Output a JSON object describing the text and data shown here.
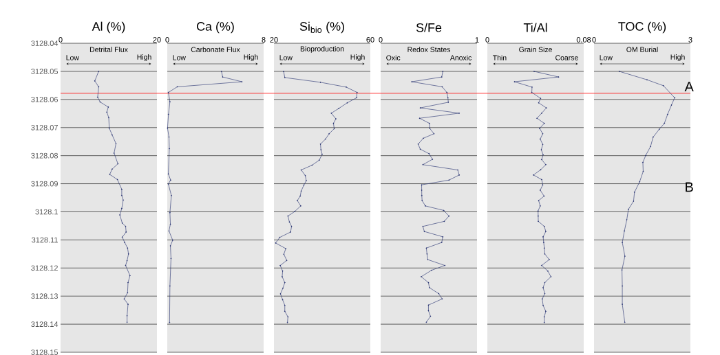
{
  "chart_data": [
    {
      "type": "line",
      "title": "Al (%)",
      "xlim": [
        0,
        20
      ],
      "xticks": [
        0,
        20
      ],
      "ylim": [
        3128.15,
        3128.04
      ],
      "yticks": [
        3128.04,
        3128.05,
        3128.06,
        3128.07,
        3128.08,
        3128.09,
        3128.1,
        3128.11,
        3128.12,
        3128.13,
        3128.14,
        3128.15
      ],
      "grid": "y",
      "marker": "circle",
      "annotations": [
        "Detrital Flux",
        "Low",
        "High"
      ],
      "ref_lines": [
        {
          "axis": "y",
          "value": 3128.0578,
          "color": "#ff0000"
        }
      ],
      "series": [
        {
          "color": "#1f2a6b",
          "x": [
            7.9,
            7.1,
            7.9,
            7.7,
            8.2,
            9.9,
            9.6,
            10.0,
            10.1,
            10.7,
            11.5,
            11.1,
            11.9,
            10.7,
            10.2,
            11.8,
            12.7,
            12.7,
            13.0,
            12.7,
            12.3,
            12.8,
            13.5,
            13.6,
            12.8,
            13.3,
            13.9,
            14.1,
            13.8,
            13.5,
            14.4,
            14.0,
            13.9,
            13.2,
            14.0,
            13.8,
            13.8
          ],
          "values": [
            3128.05,
            3128.0534,
            3128.0555,
            3128.0592,
            3128.0609,
            3128.0627,
            3128.0645,
            3128.0665,
            3128.0702,
            3128.0726,
            3128.0757,
            3128.0791,
            3128.0829,
            3128.0848,
            3128.0867,
            3128.0885,
            3128.092,
            3128.0942,
            3128.0958,
            3128.0988,
            3128.1011,
            3128.104,
            3128.1052,
            3128.1072,
            3128.109,
            3128.1109,
            3128.1129,
            3128.115,
            3128.1174,
            3128.1191,
            3128.1227,
            3128.1252,
            3128.1288,
            3128.131,
            3128.1329,
            3128.137,
            3128.1393
          ]
        }
      ]
    },
    {
      "type": "line",
      "title": "Ca (%)",
      "xlim": [
        0,
        8
      ],
      "xticks": [
        0,
        8
      ],
      "ylim": [
        3128.15,
        3128.04
      ],
      "yticks": [
        3128.04,
        3128.05,
        3128.06,
        3128.07,
        3128.08,
        3128.09,
        3128.1,
        3128.11,
        3128.12,
        3128.13,
        3128.14,
        3128.15
      ],
      "tick_labels": "x",
      "grid": "y",
      "marker": "circle",
      "annotations": [
        "Carbonate Flux",
        "Low",
        "High"
      ],
      "ref_lines": [
        {
          "axis": "y",
          "value": 3128.0578,
          "color": "#ff0000"
        }
      ],
      "series": [
        {
          "color": "#1f2a6b",
          "x": [
            4.5,
            4.6,
            6.2,
            0.83,
            0.09,
            0.22,
            0.1,
            0.02,
            0.14,
            0.17,
            0.09,
            0.28,
            0.09,
            0.34,
            0.22,
            0.26,
            0.14,
            0.45,
            0.26,
            0.31,
            0.22,
            0.19
          ],
          "values": [
            3128.05,
            3128.052,
            3128.0537,
            3128.0555,
            3128.0575,
            3128.0608,
            3128.0653,
            3128.0702,
            3128.0734,
            3128.0775,
            3128.0865,
            3128.0887,
            3128.0901,
            3128.0942,
            3128.1003,
            3128.1044,
            3128.1068,
            3128.1101,
            3128.1121,
            3128.1166,
            3128.1264,
            3128.1394
          ]
        }
      ]
    },
    {
      "type": "line",
      "title": "Si$_{bio}$ (%)",
      "xlim": [
        20,
        60
      ],
      "xticks": [
        20,
        60
      ],
      "ylim": [
        3128.15,
        3128.04
      ],
      "yticks": [
        3128.04,
        3128.05,
        3128.06,
        3128.07,
        3128.08,
        3128.09,
        3128.1,
        3128.11,
        3128.12,
        3128.13,
        3128.14,
        3128.15
      ],
      "tick_labels": "x",
      "grid": "y",
      "marker": "circle",
      "annotations": [
        "Bioproduction",
        "Low",
        "High"
      ],
      "ref_lines": [
        {
          "axis": "y",
          "value": 3128.0578,
          "color": "#ff0000"
        }
      ],
      "series": [
        {
          "color": "#1f2a6b",
          "x": [
            24.0,
            24.5,
            39.3,
            50.0,
            54.5,
            54.3,
            50.4,
            46.9,
            43.8,
            45.7,
            44.7,
            45.0,
            42.9,
            41.4,
            39.3,
            39.5,
            40.0,
            38.8,
            35.8,
            31.3,
            33.0,
            33.4,
            32.4,
            31.3,
            30.9,
            29.7,
            31.1,
            28.6,
            25.8,
            26.4,
            27.3,
            26.9,
            22.4,
            20.7,
            24.9,
            24.1,
            25.3,
            22.6,
            23.6,
            23.4,
            24.5,
            23.7,
            22.7,
            23.6,
            24.5,
            24.5,
            25.8,
            25.6
          ],
          "values": [
            3128.05,
            3128.0522,
            3128.0539,
            3128.0556,
            3128.0575,
            3128.0594,
            3128.0612,
            3128.0632,
            3128.0649,
            3128.0669,
            3128.0685,
            3128.0704,
            3128.0722,
            3128.0741,
            3128.0759,
            3128.0779,
            3128.0795,
            3128.0816,
            3128.0834,
            3128.0851,
            3128.0871,
            3128.0889,
            3128.0905,
            3128.0926,
            3128.0944,
            3128.096,
            3128.0979,
            3128.0999,
            3128.1015,
            3128.1036,
            3128.1052,
            3128.1072,
            3128.1091,
            3128.1111,
            3128.1131,
            3128.1151,
            3128.1173,
            3128.1191,
            3128.1211,
            3128.1231,
            3128.1252,
            3128.1272,
            3128.1292,
            3128.1313,
            3128.1333,
            3128.1354,
            3128.1374,
            3128.1394
          ]
        }
      ]
    },
    {
      "type": "line",
      "title": "S/Fe",
      "xlim": [
        0,
        1
      ],
      "xticks": [
        0,
        1
      ],
      "ylim": [
        3128.15,
        3128.04
      ],
      "yticks": [
        3128.04,
        3128.05,
        3128.06,
        3128.07,
        3128.08,
        3128.09,
        3128.1,
        3128.11,
        3128.12,
        3128.13,
        3128.14,
        3128.15
      ],
      "tick_labels": "x",
      "grid": "y",
      "marker": "circle",
      "annotations": [
        "Redox States",
        "Oxic",
        "Anoxic"
      ],
      "ref_lines": [
        {
          "axis": "y",
          "value": 3128.0578,
          "color": "#ff0000"
        }
      ],
      "series": [
        {
          "color": "#1f2a6b",
          "x": [
            0.645,
            0.634,
            0.323,
            0.638,
            0.687,
            0.698,
            0.702,
            0.411,
            0.815,
            0.404,
            0.506,
            0.51,
            0.553,
            0.443,
            0.389,
            0.411,
            0.502,
            0.538,
            0.438,
            0.8,
            0.815,
            0.709,
            0.425,
            0.426,
            0.427,
            0.43,
            0.464,
            0.655,
            0.709,
            0.66,
            0.438,
            0.453,
            0.645,
            0.634,
            0.474,
            0.481,
            0.489,
            0.666,
            0.528,
            0.421,
            0.496,
            0.506,
            0.602,
            0.638,
            0.496,
            0.496,
            0.517,
            0.474
          ],
          "values": [
            3128.05,
            3128.052,
            3128.0537,
            3128.0555,
            3128.0575,
            3128.0594,
            3128.061,
            3128.063,
            3128.0649,
            3128.0667,
            3128.0685,
            3128.0703,
            3128.0722,
            3128.0738,
            3128.0759,
            3128.0777,
            3128.0793,
            3128.0813,
            3128.0832,
            3128.0851,
            3128.0869,
            3128.0887,
            3128.0904,
            3128.0923,
            3128.0942,
            3128.096,
            3128.0979,
            3128.0995,
            3128.1015,
            3128.1034,
            3128.1052,
            3128.107,
            3128.1089,
            3128.1109,
            3128.1129,
            3128.115,
            3128.117,
            3128.1191,
            3128.1208,
            3128.1231,
            3128.1252,
            3128.127,
            3128.1291,
            3128.131,
            3128.1332,
            3128.1352,
            3128.1372,
            3128.1393
          ]
        }
      ]
    },
    {
      "type": "line",
      "title": "Ti/Al",
      "xlim": [
        0,
        0.08
      ],
      "xticks": [
        0,
        0.08
      ],
      "ylim": [
        3128.15,
        3128.04
      ],
      "yticks": [
        3128.04,
        3128.05,
        3128.06,
        3128.07,
        3128.08,
        3128.09,
        3128.1,
        3128.11,
        3128.12,
        3128.13,
        3128.14,
        3128.15
      ],
      "tick_labels": "x",
      "grid": "y",
      "marker": "circle",
      "annotations": [
        "Grain Size",
        "Thin",
        "Coarse"
      ],
      "ref_lines": [
        {
          "axis": "y",
          "value": 3128.0578,
          "color": "#ff0000"
        }
      ],
      "series": [
        {
          "color": "#1f2a6b",
          "x": [
            0.0388,
            0.0592,
            0.0225,
            0.0371,
            0.0369,
            0.0442,
            0.0426,
            0.049,
            0.0451,
            0.0412,
            0.0473,
            0.0434,
            0.046,
            0.0439,
            0.046,
            0.0448,
            0.0463,
            0.0451,
            0.0485,
            0.0443,
            0.0383,
            0.0451,
            0.046,
            0.0439,
            0.0471,
            0.0426,
            0.0439,
            0.0421,
            0.0422,
            0.0423,
            0.0473,
            0.0485,
            0.0463,
            0.0468,
            0.0473,
            0.0477,
            0.0514,
            0.0451,
            0.0502,
            0.0528,
            0.0477,
            0.0463,
            0.0477,
            0.0456,
            0.0463,
            0.0485,
            0.0473,
            0.0473
          ],
          "values": [
            3128.05,
            3128.052,
            3128.0537,
            3128.0556,
            3128.0575,
            3128.0596,
            3128.0612,
            3128.063,
            3128.0649,
            3128.0667,
            3128.0685,
            3128.0703,
            3128.0722,
            3128.0741,
            3128.076,
            3128.0779,
            3128.0797,
            3128.0814,
            3128.0832,
            3128.085,
            3128.0869,
            3128.0885,
            3128.0904,
            3128.0923,
            3128.0944,
            3128.096,
            3128.0979,
            3128.0997,
            3128.1015,
            3128.1034,
            3128.1052,
            3128.107,
            3128.1089,
            3128.1109,
            3128.1129,
            3128.115,
            3128.117,
            3128.1191,
            3128.1211,
            3128.1231,
            3128.1252,
            3128.127,
            3128.1291,
            3128.131,
            3128.1333,
            3128.1354,
            3128.1374,
            3128.1394
          ]
        }
      ]
    },
    {
      "type": "line",
      "title": "TOC (%)",
      "xlim": [
        0,
        3
      ],
      "xticks": [
        0,
        3
      ],
      "ylim": [
        3128.15,
        3128.04
      ],
      "yticks": [
        3128.04,
        3128.05,
        3128.06,
        3128.07,
        3128.08,
        3128.09,
        3128.1,
        3128.11,
        3128.12,
        3128.13,
        3128.14,
        3128.15
      ],
      "tick_labels": "x",
      "grid": "y",
      "marker": "circle",
      "annotations": [
        "OM Burial",
        "Low",
        "High",
        "A",
        "B"
      ],
      "ref_lines": [
        {
          "axis": "y",
          "value": 3128.0578,
          "color": "#ff0000"
        }
      ],
      "series": [
        {
          "color": "#1f2a6b",
          "x": [
            0.785,
            1.65,
            2.16,
            2.51,
            2.41,
            2.29,
            2.19,
            2.03,
            1.84,
            1.76,
            1.61,
            1.52,
            1.53,
            1.42,
            1.26,
            1.23,
            1.07,
            1.02,
            0.945,
            0.88,
            0.96,
            0.87,
            0.88,
            0.88,
            0.957
          ],
          "values": [
            3128.05,
            3128.053,
            3128.0551,
            3128.0594,
            3128.062,
            3128.0653,
            3128.0685,
            3128.0706,
            3128.0734,
            3128.0767,
            3128.0799,
            3128.0824,
            3128.0856,
            3128.0893,
            3128.093,
            3128.0962,
            3128.0991,
            3128.1028,
            3128.1068,
            3128.1109,
            3128.1158,
            3128.1207,
            3128.1264,
            3128.1329,
            3128.1393
          ]
        }
      ]
    }
  ]
}
